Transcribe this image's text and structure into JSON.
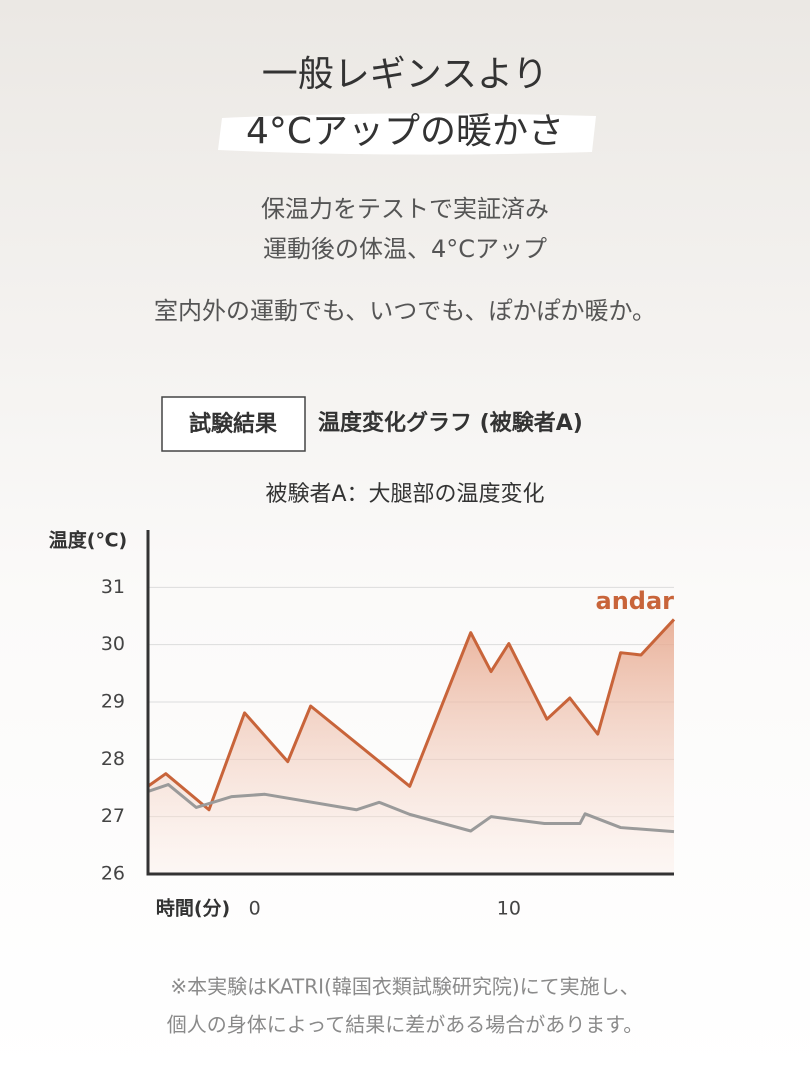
{
  "header": {
    "title_line1": "一般レギンスより",
    "title_line2": "4°Cアップの暖かさ",
    "subtitle_line1": "保温力をテストで実証済み",
    "subtitle_line2": "運動後の体温、4°Cアップ",
    "tagline": "室内外の運動でも、いつでも、ぽかぽか暖か。"
  },
  "section": {
    "badge": "試験結果",
    "heading": "温度変化グラフ (被験者A)"
  },
  "chart_data": {
    "type": "line",
    "title": "被験者A：大腿部の温度変化",
    "y_label": "温度(℃)",
    "x_label": "時間(分)",
    "xlim": [
      -4.2,
      16.5
    ],
    "xticks": [
      0,
      10
    ],
    "ylim": [
      26,
      32
    ],
    "yticks": [
      26,
      27,
      28,
      29,
      30,
      31
    ],
    "grid": true,
    "series": [
      {
        "name": "andar",
        "color": "#c8643a",
        "area": true,
        "x": [
          -4.2,
          -3.5,
          -1.8,
          -0.4,
          1.3,
          2.2,
          6.1,
          8.5,
          9.3,
          10,
          11.5,
          12.4,
          13.5,
          14.4,
          15.2,
          16.5
        ],
        "values": [
          27.53,
          27.75,
          27.12,
          28.81,
          27.96,
          28.93,
          27.53,
          30.21,
          29.53,
          30.02,
          28.7,
          29.07,
          28.44,
          29.86,
          29.82,
          30.44
        ]
      },
      {
        "color": "#9a9a9a",
        "x": [
          -4.2,
          -3.4,
          -2.3,
          -0.9,
          0.4,
          4.0,
          4.9,
          6.1,
          8.5,
          9.3,
          11.4,
          12.8,
          13.0,
          14.4,
          16.5
        ],
        "values": [
          27.44,
          27.56,
          27.16,
          27.35,
          27.39,
          27.12,
          27.25,
          27.04,
          26.75,
          27.0,
          26.88,
          26.88,
          27.05,
          26.81,
          26.74
        ]
      }
    ]
  },
  "footnote": {
    "line1": "※本実験はKATRI(韓国衣類試験研究院)にて実施し、",
    "line2": "個人の身体によって結果に差がある場合があります。"
  }
}
